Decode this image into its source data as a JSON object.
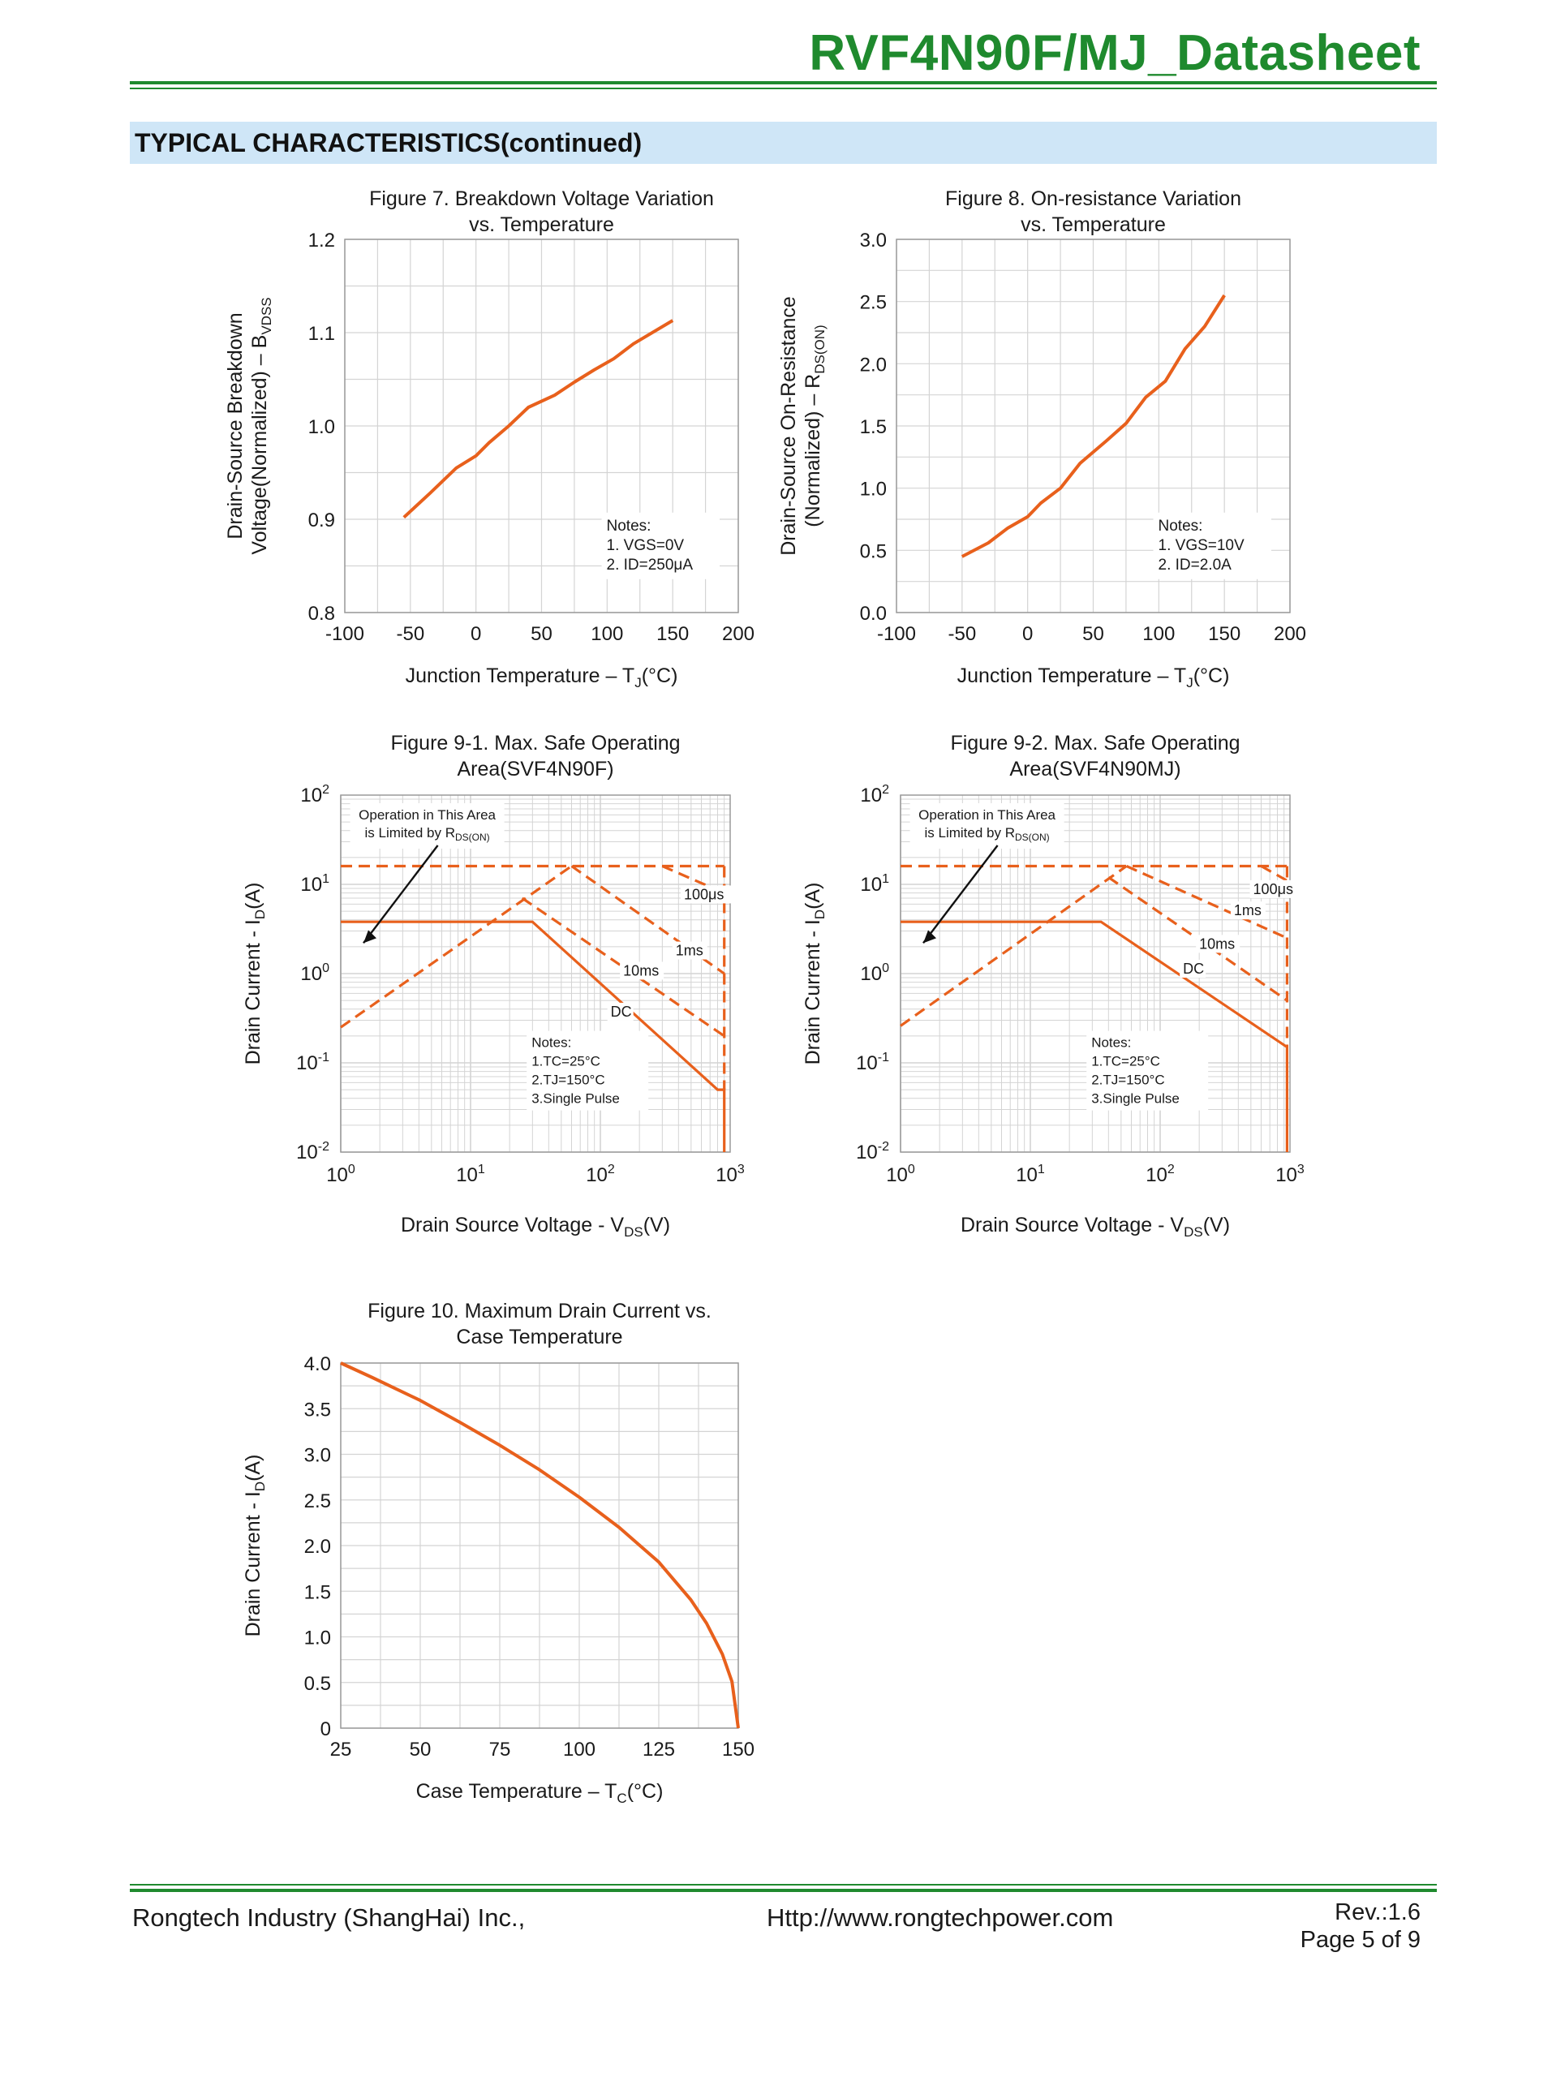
{
  "header": {
    "doc_title": "RVF4N90F/MJ_Datasheet",
    "section_title": "TYPICAL CHARACTERISTICS(continued)"
  },
  "footer": {
    "company": "Rongtech Industry (ShangHai) Inc.,",
    "url": "Http://www.rongtechpower.com",
    "rev": "Rev.:1.6",
    "page": "Page  5  of  9"
  },
  "colors": {
    "curve": "#E8601C",
    "grid": "#d4d4d4",
    "brand_green": "#1f8a2e",
    "section_bg": "#cfe6f7"
  },
  "chart_data": [
    {
      "id": "fig7",
      "type": "line",
      "title_lines": [
        "Figure 7. Breakdown Voltage Variation",
        "vs. Temperature"
      ],
      "xlabel": "Junction Temperature  –  T",
      "xlabel_sub": "J",
      "xlabel_post": "(°C)",
      "ylabel_lines": [
        "Drain-Source Breakdown",
        "Voltage(Normalized)  –  B"
      ],
      "ylabel_sub": "VDSS",
      "xlim": [
        -100,
        200
      ],
      "ylim": [
        0.8,
        1.2
      ],
      "xticks": [
        -100,
        -50,
        0,
        50,
        100,
        150,
        200
      ],
      "xtick_labels": [
        "-100",
        "-50",
        "0",
        "50",
        "100",
        "150",
        "200"
      ],
      "yticks": [
        0.8,
        0.9,
        1.0,
        1.1,
        1.2
      ],
      "ytick_labels": [
        "0.8",
        "0.9",
        "1.0",
        "1.1",
        "1.2"
      ],
      "x": [
        -55,
        -35,
        -15,
        0,
        10,
        25,
        40,
        60,
        75,
        90,
        105,
        120,
        150
      ],
      "y": [
        0.902,
        0.928,
        0.955,
        0.968,
        0.982,
        1.0,
        1.02,
        1.033,
        1.047,
        1.06,
        1.072,
        1.088,
        1.113
      ],
      "notes": [
        "Notes:",
        "1. Vᴳˢ=0V",
        "2. Iᴅ=250μA"
      ],
      "notes_text": [
        "Notes:",
        "1. VGS=0V",
        "2. ID=250μA"
      ]
    },
    {
      "id": "fig8",
      "type": "line",
      "title_lines": [
        "Figure 8. On-resistance Variation",
        "vs. Temperature"
      ],
      "xlabel": "Junction Temperature  –  T",
      "xlabel_sub": "J",
      "xlabel_post": "(°C)",
      "ylabel_lines": [
        "Drain-Source On-Resistance",
        "(Normalized)  –  R"
      ],
      "ylabel_sub": "DS(ON)",
      "xlim": [
        -100,
        200
      ],
      "ylim": [
        0,
        3.0
      ],
      "xticks": [
        -100,
        -50,
        0,
        50,
        100,
        150,
        200
      ],
      "xtick_labels": [
        "-100",
        "-50",
        "0",
        "50",
        "100",
        "150",
        "200"
      ],
      "yticks": [
        0,
        0.5,
        1.0,
        1.5,
        2.0,
        2.5,
        3.0
      ],
      "ytick_labels": [
        "0.0",
        "0.5",
        "1.0",
        "1.5",
        "2.0",
        "2.5",
        "3.0"
      ],
      "x": [
        -50,
        -30,
        -15,
        0,
        10,
        25,
        40,
        60,
        75,
        90,
        105,
        120,
        135,
        150
      ],
      "y": [
        0.45,
        0.56,
        0.68,
        0.77,
        0.88,
        1.0,
        1.2,
        1.38,
        1.52,
        1.73,
        1.86,
        2.12,
        2.3,
        2.55
      ],
      "notes_text": [
        "Notes:",
        "1. VGS=10V",
        "2. ID=2.0A"
      ]
    },
    {
      "id": "fig9-1",
      "type": "line",
      "scale": "log-log",
      "title_lines": [
        "Figure 9-1. Max. Safe Operating",
        "Area(SVF4N90F)"
      ],
      "xlabel": "Drain Source Voltage - V",
      "xlabel_sub": "DS",
      "xlabel_post": "(V)",
      "ylabel": "Drain Current - I",
      "ylabel_sub": "D",
      "ylabel_post": "(A)",
      "xlim": [
        1,
        1000
      ],
      "ylim": [
        0.01,
        100
      ],
      "xtick_exps": [
        "0",
        "1",
        "2",
        "3"
      ],
      "ytick_exps": [
        "-2",
        "-1",
        "0",
        "1",
        "2"
      ],
      "series": [
        {
          "name": "DC",
          "style": "solid",
          "x": [
            1,
            30,
            800,
            900,
            900
          ],
          "y": [
            3.8,
            3.8,
            0.05,
            0.05,
            0.01
          ]
        },
        {
          "name": "RDS(ON) limit",
          "style": "dashed",
          "x": [
            1,
            60
          ],
          "y": [
            0.25,
            16
          ]
        },
        {
          "name": "current limit",
          "style": "dashed",
          "x": [
            1,
            900
          ],
          "y": [
            16,
            16
          ]
        },
        {
          "name": "100μs",
          "style": "dashed",
          "x": [
            300,
            900
          ],
          "y": [
            16,
            8
          ]
        },
        {
          "name": "1ms",
          "style": "dashed",
          "x": [
            60,
            900
          ],
          "y": [
            16,
            1.0
          ]
        },
        {
          "name": "10ms",
          "style": "dashed",
          "x": [
            25,
            900
          ],
          "y": [
            7,
            0.2
          ]
        },
        {
          "name": "vmax",
          "style": "dashed",
          "x": [
            900,
            900
          ],
          "y": [
            16,
            0.05
          ]
        }
      ],
      "labels": [
        "100μs",
        "1ms",
        "10ms",
        "DC"
      ],
      "annotation_lines": [
        "Operation in This Area",
        "is Limited by R"
      ],
      "annotation_sub": "DS(ON)",
      "notes_text": [
        "Notes:",
        "1.TC=25°C",
        "2.TJ=150°C",
        "3.Single Pulse"
      ]
    },
    {
      "id": "fig9-2",
      "type": "line",
      "scale": "log-log",
      "title_lines": [
        "Figure 9-2. Max. Safe Operating",
        "Area(SVF4N90MJ)"
      ],
      "xlabel": "Drain Source Voltage - V",
      "xlabel_sub": "DS",
      "xlabel_post": "(V)",
      "ylabel": "Drain Current - I",
      "ylabel_sub": "D",
      "ylabel_post": "(A)",
      "xlim": [
        1,
        1000
      ],
      "ylim": [
        0.01,
        100
      ],
      "xtick_exps": [
        "0",
        "1",
        "2",
        "3"
      ],
      "ytick_exps": [
        "-2",
        "-1",
        "0",
        "1",
        "2"
      ],
      "series": [
        {
          "name": "DC",
          "style": "solid",
          "x": [
            1,
            35,
            950,
            950
          ],
          "y": [
            3.8,
            3.8,
            0.15,
            0.01
          ]
        },
        {
          "name": "RDS(ON) limit",
          "style": "dashed",
          "x": [
            1,
            55
          ],
          "y": [
            0.26,
            16
          ]
        },
        {
          "name": "current limit",
          "style": "dashed",
          "x": [
            1,
            950
          ],
          "y": [
            16,
            16
          ]
        },
        {
          "name": "100μs",
          "style": "dashed",
          "x": [
            600,
            950
          ],
          "y": [
            16,
            11
          ]
        },
        {
          "name": "1ms",
          "style": "dashed",
          "x": [
            55,
            950
          ],
          "y": [
            16,
            2.5
          ]
        },
        {
          "name": "10ms",
          "style": "dashed",
          "x": [
            40,
            950
          ],
          "y": [
            12,
            0.5
          ]
        },
        {
          "name": "vmax",
          "style": "dashed",
          "x": [
            950,
            950
          ],
          "y": [
            16,
            0.15
          ]
        }
      ],
      "labels": [
        "100μs",
        "1ms",
        "10ms",
        "DC"
      ],
      "annotation_lines": [
        "Operation in This Area",
        "is Limited by R"
      ],
      "annotation_sub": "DS(ON)",
      "notes_text": [
        "Notes:",
        "1.TC=25°C",
        "2.TJ=150°C",
        "3.Single Pulse"
      ]
    },
    {
      "id": "fig10",
      "type": "line",
      "title_lines": [
        "Figure 10. Maximum Drain Current vs.",
        "Case Temperature"
      ],
      "xlabel": "Case Temperature  –  T",
      "xlabel_sub": "C",
      "xlabel_post": "(°C)",
      "ylabel": "Drain Current - I",
      "ylabel_sub": "D",
      "ylabel_post": "(A)",
      "xlim": [
        25,
        150
      ],
      "ylim": [
        0,
        4.0
      ],
      "xticks": [
        25,
        50,
        75,
        100,
        125,
        150
      ],
      "xtick_labels": [
        "25",
        "50",
        "75",
        "100",
        "125",
        "150"
      ],
      "yticks": [
        0,
        0.5,
        1.0,
        1.5,
        2.0,
        2.5,
        3.0,
        3.5,
        4.0
      ],
      "ytick_labels": [
        "0",
        "0.5",
        "1.0",
        "1.5",
        "2.0",
        "2.5",
        "3.0",
        "3.5",
        "4.0"
      ],
      "x": [
        25,
        35,
        50,
        62.5,
        75,
        87.5,
        100,
        112.5,
        125,
        135,
        140,
        145,
        148,
        150
      ],
      "y": [
        4.0,
        3.84,
        3.59,
        3.35,
        3.1,
        2.83,
        2.53,
        2.2,
        1.82,
        1.41,
        1.15,
        0.81,
        0.51,
        0.0
      ]
    }
  ]
}
